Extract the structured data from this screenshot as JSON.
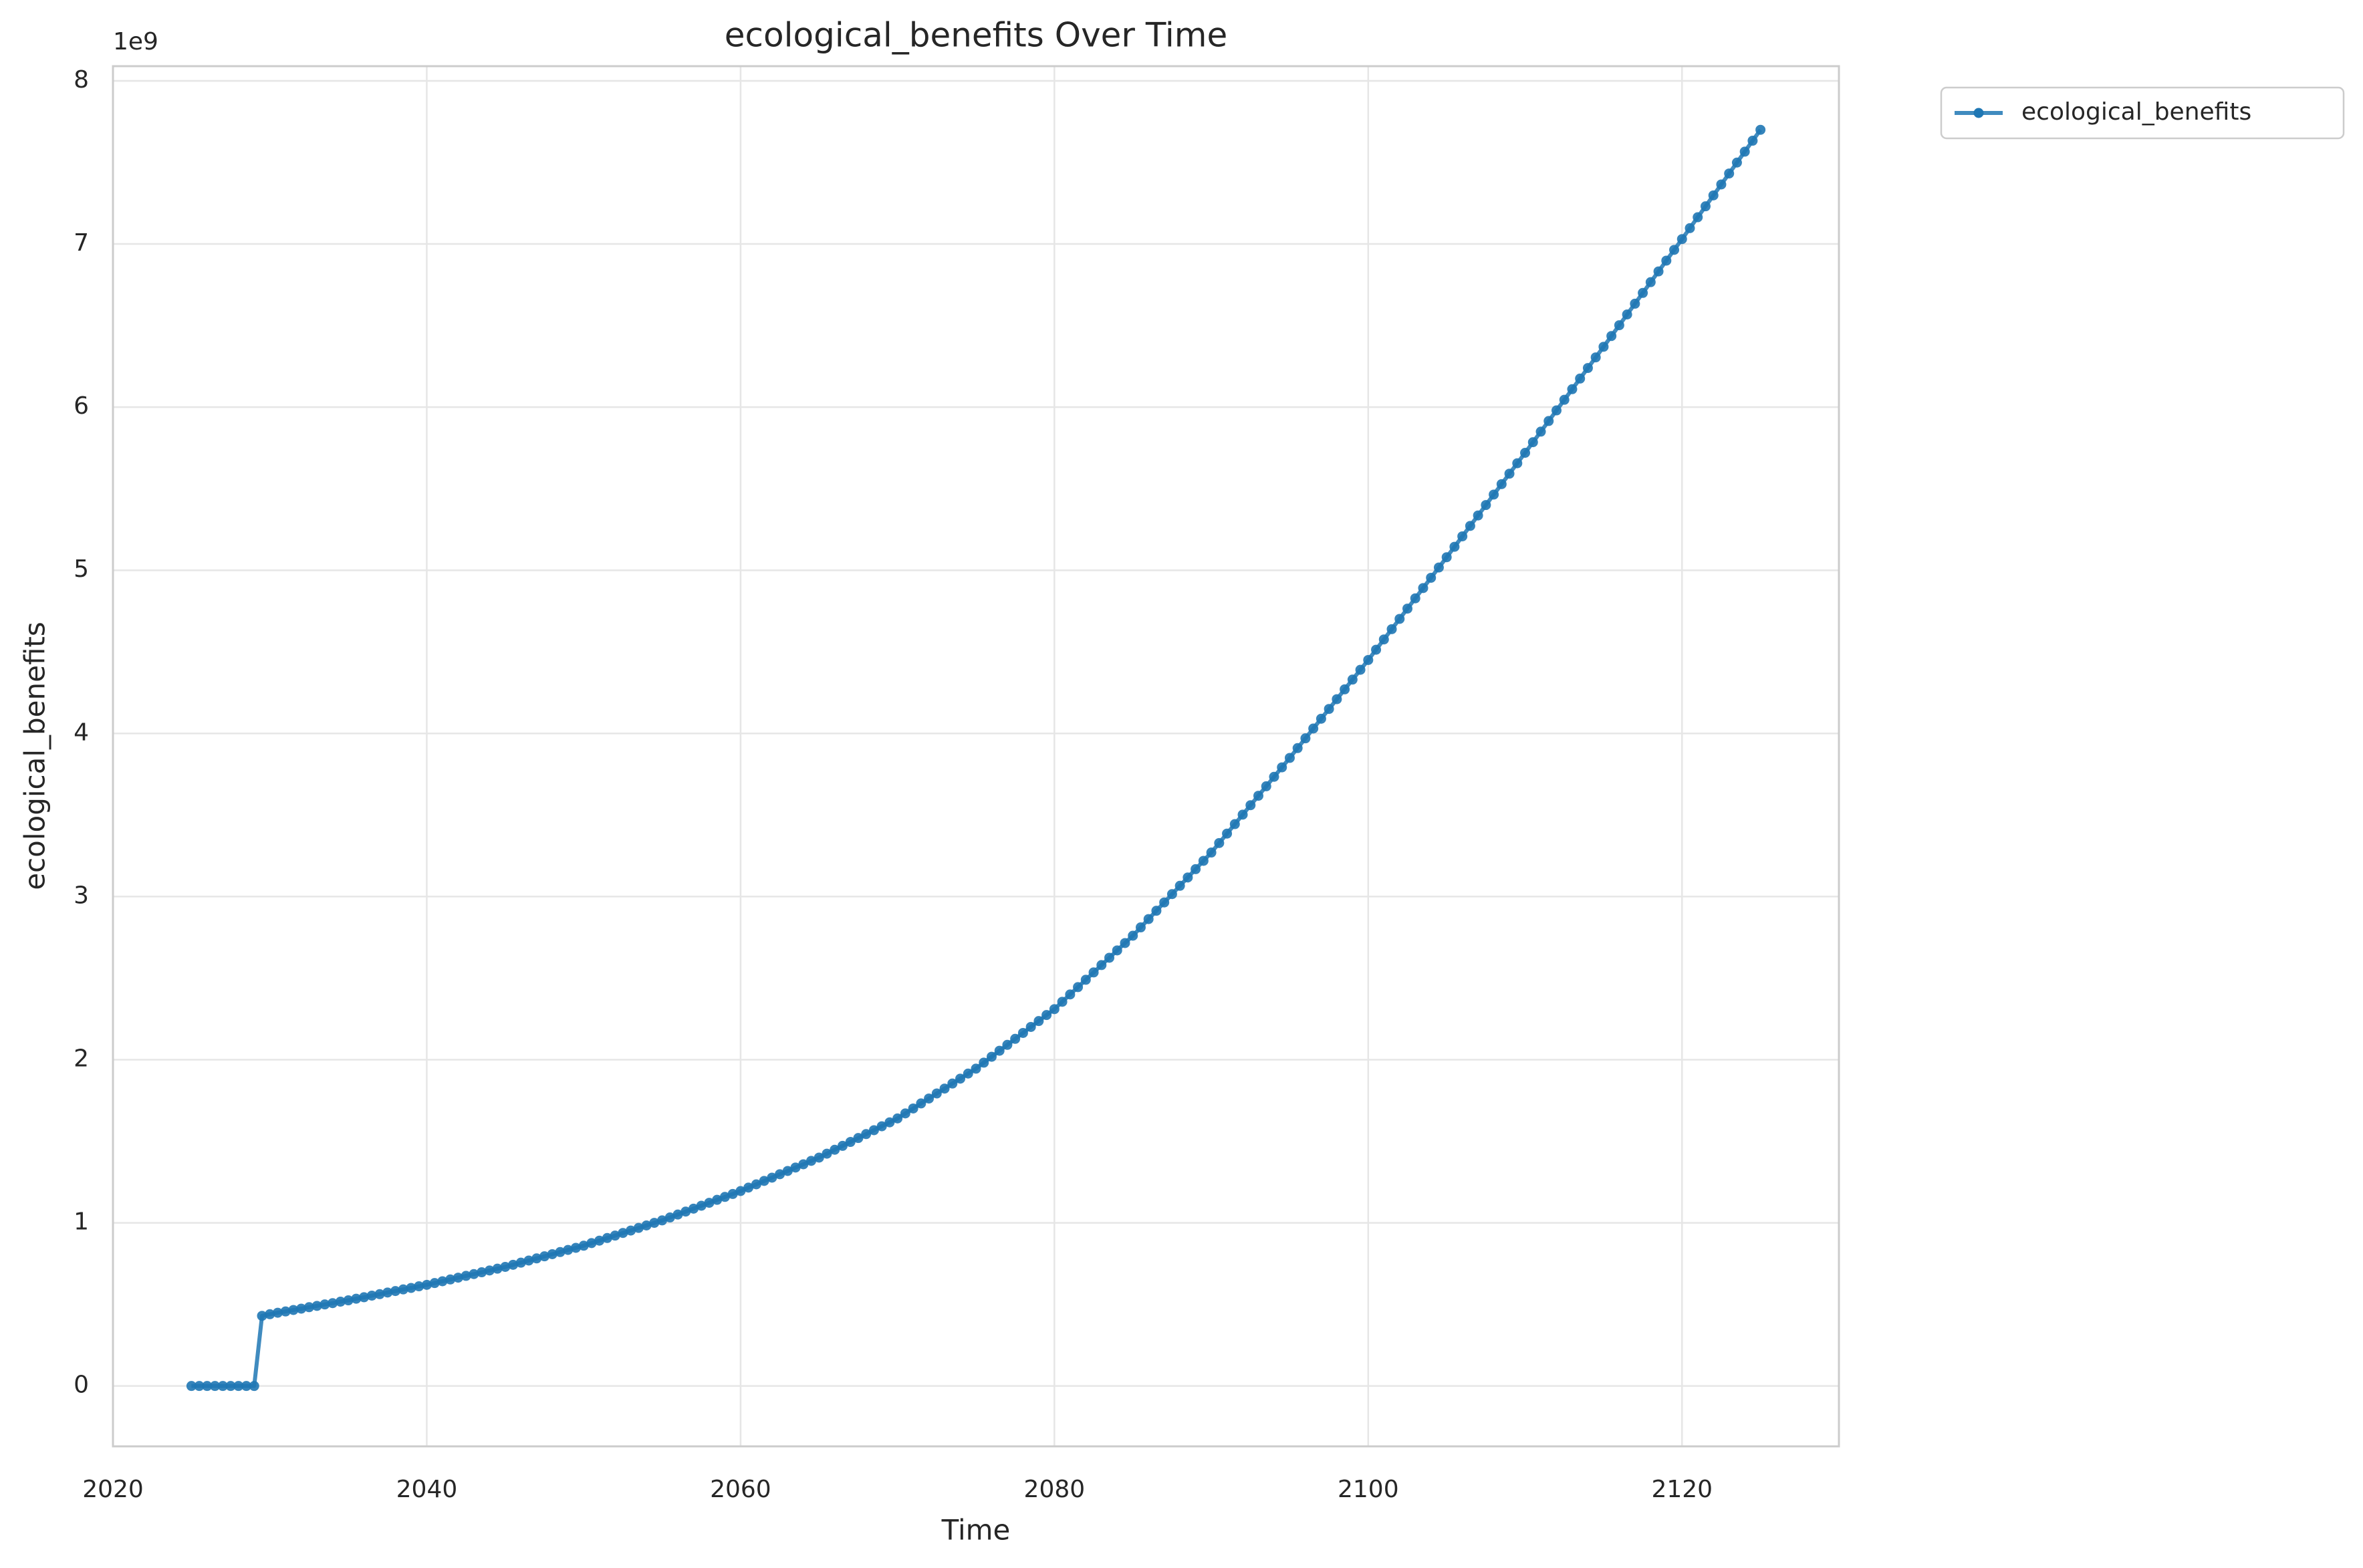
{
  "chart_data": {
    "type": "line",
    "title": "ecological_benefits Over Time",
    "xlabel": "Time",
    "ylabel": "ecological_benefits",
    "y_offset_label": "1e9",
    "x": [
      2025,
      2025.5,
      2026,
      2026.5,
      2027,
      2027.5,
      2028,
      2028.5,
      2029,
      2029.5,
      2030,
      2030.5,
      2031,
      2031.5,
      2032,
      2032.5,
      2033,
      2033.5,
      2034,
      2034.5,
      2035,
      2035.5,
      2036,
      2036.5,
      2037,
      2037.5,
      2038,
      2038.5,
      2039,
      2039.5,
      2040,
      2040.5,
      2041,
      2041.5,
      2042,
      2042.5,
      2043,
      2043.5,
      2044,
      2044.5,
      2045,
      2045.5,
      2046,
      2046.5,
      2047,
      2047.5,
      2048,
      2048.5,
      2049,
      2049.5,
      2050,
      2050.5,
      2051,
      2051.5,
      2052,
      2052.5,
      2053,
      2053.5,
      2054,
      2054.5,
      2055,
      2055.5,
      2056,
      2056.5,
      2057,
      2057.5,
      2058,
      2058.5,
      2059,
      2059.5,
      2060,
      2060.5,
      2061,
      2061.5,
      2062,
      2062.5,
      2063,
      2063.5,
      2064,
      2064.5,
      2065,
      2065.5,
      2066,
      2066.5,
      2067,
      2067.5,
      2068,
      2068.5,
      2069,
      2069.5,
      2070,
      2070.5,
      2071,
      2071.5,
      2072,
      2072.5,
      2073,
      2073.5,
      2074,
      2074.5,
      2075,
      2075.5,
      2076,
      2076.5,
      2077,
      2077.5,
      2078,
      2078.5,
      2079,
      2079.5,
      2080,
      2080.5,
      2081,
      2081.5,
      2082,
      2082.5,
      2083,
      2083.5,
      2084,
      2084.5,
      2085,
      2085.5,
      2086,
      2086.5,
      2087,
      2087.5,
      2088,
      2088.5,
      2089,
      2089.5,
      2090,
      2090.5,
      2091,
      2091.5,
      2092,
      2092.5,
      2093,
      2093.5,
      2094,
      2094.5,
      2095,
      2095.5,
      2096,
      2096.5,
      2097,
      2097.5,
      2098,
      2098.5,
      2099,
      2099.5,
      2100,
      2100.5,
      2101,
      2101.5,
      2102,
      2102.5,
      2103,
      2103.5,
      2104,
      2104.5,
      2105,
      2105.5,
      2106,
      2106.5,
      2107,
      2107.5,
      2108,
      2108.5,
      2109,
      2109.5,
      2110,
      2110.5,
      2111,
      2111.5,
      2112,
      2112.5,
      2113,
      2113.5,
      2114,
      2114.5,
      2115,
      2115.5,
      2116,
      2116.5,
      2117,
      2117.5,
      2118,
      2118.5,
      2119,
      2119.5,
      2120,
      2120.5,
      2121,
      2121.5,
      2122,
      2122.5,
      2123,
      2123.5,
      2124,
      2124.5,
      2125
    ],
    "series": [
      {
        "name": "ecological_benefits",
        "color": "#1f77b4",
        "values": [
          0,
          0,
          0,
          0,
          0,
          0,
          0,
          0,
          0,
          0.43,
          0.44,
          0.449,
          0.457,
          0.466,
          0.474,
          0.483,
          0.491,
          0.5,
          0.508,
          0.517,
          0.525,
          0.535,
          0.544,
          0.554,
          0.563,
          0.573,
          0.582,
          0.592,
          0.601,
          0.611,
          0.62,
          0.631,
          0.642,
          0.653,
          0.664,
          0.675,
          0.686,
          0.697,
          0.708,
          0.719,
          0.73,
          0.743,
          0.756,
          0.769,
          0.782,
          0.795,
          0.808,
          0.821,
          0.834,
          0.847,
          0.86,
          0.876,
          0.891,
          0.907,
          0.922,
          0.938,
          0.953,
          0.969,
          0.984,
          1.0,
          1.015,
          1.033,
          1.051,
          1.069,
          1.087,
          1.105,
          1.123,
          1.141,
          1.159,
          1.177,
          1.195,
          1.216,
          1.236,
          1.257,
          1.277,
          1.298,
          1.318,
          1.339,
          1.359,
          1.38,
          1.4,
          1.424,
          1.448,
          1.472,
          1.496,
          1.52,
          1.544,
          1.568,
          1.592,
          1.616,
          1.64,
          1.671,
          1.701,
          1.732,
          1.762,
          1.793,
          1.823,
          1.854,
          1.884,
          1.915,
          1.945,
          1.982,
          2.018,
          2.055,
          2.091,
          2.128,
          2.164,
          2.201,
          2.237,
          2.274,
          2.31,
          2.355,
          2.4,
          2.445,
          2.49,
          2.535,
          2.58,
          2.625,
          2.67,
          2.715,
          2.76,
          2.811,
          2.862,
          2.913,
          2.964,
          3.015,
          3.066,
          3.117,
          3.168,
          3.219,
          3.27,
          3.328,
          3.386,
          3.444,
          3.502,
          3.56,
          3.618,
          3.676,
          3.734,
          3.792,
          3.85,
          3.91,
          3.97,
          4.03,
          4.09,
          4.15,
          4.21,
          4.27,
          4.33,
          4.39,
          4.45,
          4.513,
          4.576,
          4.639,
          4.702,
          4.765,
          4.828,
          4.891,
          4.954,
          5.017,
          5.08,
          5.144,
          5.208,
          5.272,
          5.336,
          5.4,
          5.464,
          5.528,
          5.592,
          5.656,
          5.72,
          5.785,
          5.85,
          5.915,
          5.98,
          6.045,
          6.11,
          6.175,
          6.24,
          6.305,
          6.37,
          6.436,
          6.502,
          6.568,
          6.634,
          6.7,
          6.766,
          6.832,
          6.898,
          6.964,
          7.03,
          7.097,
          7.164,
          7.231,
          7.298,
          7.365,
          7.432,
          7.499,
          7.566,
          7.633,
          7.7
        ]
      }
    ],
    "xlim": [
      2020,
      2130
    ],
    "xticks": [
      2020,
      2040,
      2060,
      2080,
      2100,
      2120
    ],
    "ylim": [
      -0.37,
      8.09
    ],
    "yticks": [
      0,
      1,
      2,
      3,
      4,
      5,
      6,
      7,
      8
    ],
    "grid": true,
    "legend": "outside"
  }
}
